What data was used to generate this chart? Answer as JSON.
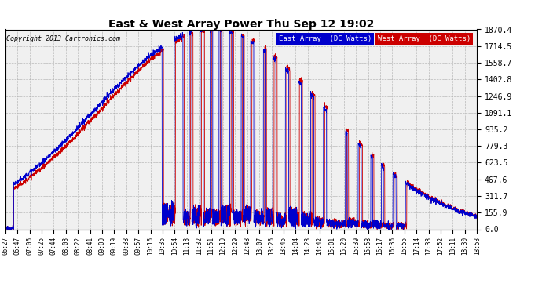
{
  "title": "East & West Array Power Thu Sep 12 19:02",
  "copyright": "Copyright 2013 Cartronics.com",
  "legend_east": "East Array  (DC Watts)",
  "legend_west": "West Array  (DC Watts)",
  "east_color": "#0000cc",
  "west_color": "#cc0000",
  "background_color": "#ffffff",
  "plot_bg_color": "#f0f0f0",
  "grid_color": "#aaaaaa",
  "yticks": [
    0.0,
    155.9,
    311.7,
    467.6,
    623.5,
    779.3,
    935.2,
    1091.1,
    1246.9,
    1402.8,
    1558.7,
    1714.5,
    1870.4
  ],
  "ymax": 1870.4,
  "ymin": 0.0,
  "xtick_labels": [
    "06:27",
    "06:47",
    "07:06",
    "07:25",
    "07:44",
    "08:03",
    "08:22",
    "08:41",
    "09:00",
    "09:19",
    "09:38",
    "09:57",
    "10:16",
    "10:35",
    "10:54",
    "11:13",
    "11:32",
    "11:51",
    "12:10",
    "12:29",
    "12:48",
    "13:07",
    "13:26",
    "13:45",
    "14:04",
    "14:23",
    "14:42",
    "15:01",
    "15:20",
    "15:39",
    "15:58",
    "16:17",
    "16:36",
    "16:55",
    "17:14",
    "17:33",
    "17:52",
    "18:11",
    "18:30",
    "18:53"
  ]
}
